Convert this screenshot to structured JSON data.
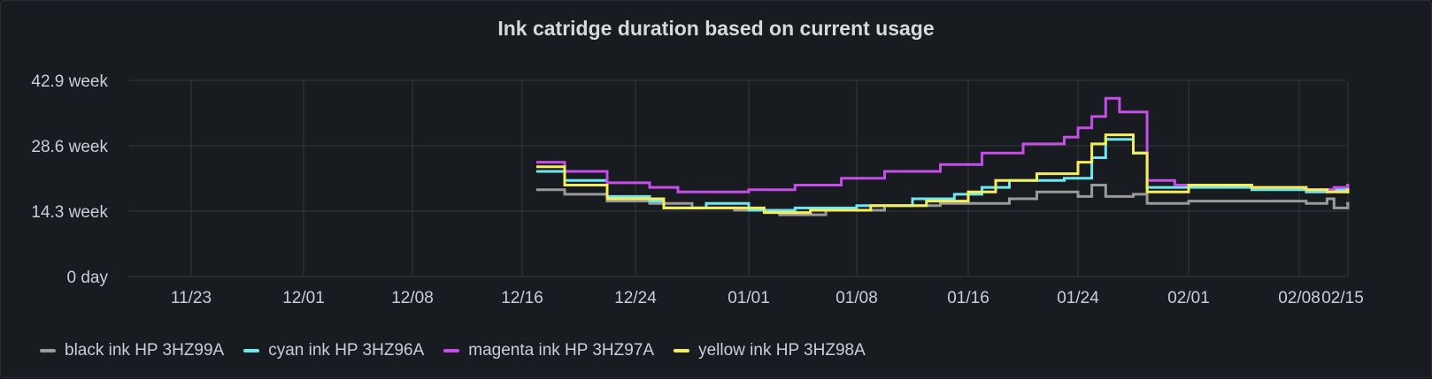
{
  "panel": {
    "title": "Ink catridge duration based on current usage"
  },
  "chart_data": {
    "type": "line",
    "title": "Ink catridge duration based on current usage",
    "xlabel": "",
    "ylabel": "",
    "x_ticks": [
      "11/23",
      "12/01",
      "12/08",
      "12/16",
      "12/24",
      "01/01",
      "01/08",
      "01/16",
      "01/24",
      "02/01",
      "02/08",
      "02/15"
    ],
    "y_ticks": [
      "0 day",
      "14.3 week",
      "28.6 week",
      "42.9 week"
    ],
    "ylim_weeks": [
      0,
      42.9
    ],
    "grid": true,
    "legend_position": "bottom-left",
    "series": [
      {
        "name": "black ink HP 3HZ99A",
        "color": "#9a9a9a",
        "points": [
          [
            "12/17",
            19
          ],
          [
            "12/19",
            18
          ],
          [
            "12/22",
            16.5
          ],
          [
            "12/25",
            16
          ],
          [
            "12/28",
            15
          ],
          [
            "12/31",
            14.5
          ],
          [
            "01/03",
            13.5
          ],
          [
            "01/06",
            14.5
          ],
          [
            "01/10",
            15.5
          ],
          [
            "01/14",
            16
          ],
          [
            "01/17",
            16
          ],
          [
            "01/19",
            17
          ],
          [
            "01/21",
            18.5
          ],
          [
            "01/24",
            17.5
          ],
          [
            "01/25",
            20
          ],
          [
            "01/26",
            17.5
          ],
          [
            "01/28",
            18
          ],
          [
            "01/29",
            16
          ],
          [
            "02/01",
            16.5
          ],
          [
            "02/05",
            16.5
          ],
          [
            "02/09",
            16
          ],
          [
            "02/12",
            17
          ],
          [
            "02/13",
            15
          ],
          [
            "02/15",
            16
          ]
        ]
      },
      {
        "name": "cyan ink HP 3HZ96A",
        "color": "#6ee7f0",
        "points": [
          [
            "12/17",
            23
          ],
          [
            "12/19",
            21
          ],
          [
            "12/22",
            17.5
          ],
          [
            "12/25",
            16.5
          ],
          [
            "12/26",
            15
          ],
          [
            "12/29",
            16
          ],
          [
            "01/01",
            14.5
          ],
          [
            "01/04",
            15
          ],
          [
            "01/08",
            15.5
          ],
          [
            "01/12",
            17
          ],
          [
            "01/15",
            18
          ],
          [
            "01/17",
            19.5
          ],
          [
            "01/19",
            21
          ],
          [
            "01/23",
            21.5
          ],
          [
            "01/25",
            26
          ],
          [
            "01/26",
            30
          ],
          [
            "01/28",
            27
          ],
          [
            "01/29",
            19.5
          ],
          [
            "02/01",
            19.5
          ],
          [
            "02/05",
            19
          ],
          [
            "02/09",
            18.5
          ],
          [
            "02/12",
            19
          ],
          [
            "02/15",
            18.5
          ]
        ]
      },
      {
        "name": "magenta ink HP 3HZ97A",
        "color": "#c64ee8",
        "points": [
          [
            "12/17",
            25
          ],
          [
            "12/19",
            23
          ],
          [
            "12/22",
            20.5
          ],
          [
            "12/25",
            19.5
          ],
          [
            "12/27",
            18.5
          ],
          [
            "01/01",
            19
          ],
          [
            "01/04",
            20
          ],
          [
            "01/07",
            21.5
          ],
          [
            "01/10",
            23
          ],
          [
            "01/14",
            24.5
          ],
          [
            "01/17",
            27
          ],
          [
            "01/20",
            29
          ],
          [
            "01/23",
            30.5
          ],
          [
            "01/24",
            32.5
          ],
          [
            "01/25",
            35
          ],
          [
            "01/26",
            39
          ],
          [
            "01/27",
            36
          ],
          [
            "01/29",
            21
          ],
          [
            "01/31",
            20
          ],
          [
            "02/05",
            19.5
          ],
          [
            "02/09",
            19
          ],
          [
            "02/13",
            19.5
          ],
          [
            "02/15",
            20
          ]
        ]
      },
      {
        "name": "yellow ink HP 3HZ98A",
        "color": "#f5ee5b",
        "points": [
          [
            "12/17",
            24
          ],
          [
            "12/19",
            20
          ],
          [
            "12/22",
            17
          ],
          [
            "12/26",
            15
          ],
          [
            "12/30",
            15
          ],
          [
            "01/02",
            14
          ],
          [
            "01/05",
            14.5
          ],
          [
            "01/09",
            15.5
          ],
          [
            "01/13",
            16.5
          ],
          [
            "01/16",
            18.5
          ],
          [
            "01/18",
            21
          ],
          [
            "01/21",
            22.5
          ],
          [
            "01/24",
            25
          ],
          [
            "01/25",
            29
          ],
          [
            "01/26",
            31
          ],
          [
            "01/28",
            27
          ],
          [
            "01/29",
            18.5
          ],
          [
            "02/01",
            20
          ],
          [
            "02/05",
            19.5
          ],
          [
            "02/09",
            19
          ],
          [
            "02/12",
            18.5
          ],
          [
            "02/15",
            19
          ]
        ]
      }
    ]
  }
}
